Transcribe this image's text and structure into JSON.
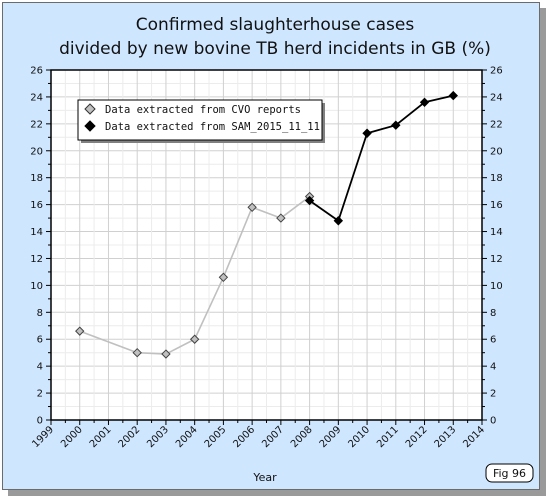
{
  "chart_data": {
    "type": "line",
    "title_lines": [
      "Confirmed slaughterhouse cases",
      "divided by new bovine TB herd incidents in GB (%)"
    ],
    "xlabel": "Year",
    "ylabel": "",
    "xlim": [
      1999,
      2014
    ],
    "ylim": [
      0,
      26
    ],
    "x_ticks": [
      "1999",
      "2000",
      "2001",
      "2002",
      "2003",
      "2004",
      "2005",
      "2006",
      "2007",
      "2008",
      "2009",
      "2010",
      "2011",
      "2012",
      "2013",
      "2014"
    ],
    "y_ticks": [
      "0",
      "2",
      "4",
      "6",
      "8",
      "10",
      "12",
      "14",
      "16",
      "18",
      "20",
      "22",
      "24",
      "26"
    ],
    "grid": true,
    "legend_position": "top-left",
    "series": [
      {
        "name": "Data extracted from CVO reports",
        "color": "#c0c0c0",
        "x": [
          2000,
          2002,
          2003,
          2004,
          2005,
          2006,
          2007,
          2008
        ],
        "values": [
          6.6,
          5.0,
          4.9,
          6.0,
          10.6,
          15.8,
          15.0,
          16.6
        ]
      },
      {
        "name": "Data extracted from SAM_2015_11_11",
        "color": "#000000",
        "x": [
          2008,
          2009,
          2010,
          2011,
          2012,
          2013
        ],
        "values": [
          16.3,
          14.8,
          21.3,
          21.9,
          23.6,
          24.1
        ]
      }
    ]
  },
  "figure_label": "Fig 96"
}
